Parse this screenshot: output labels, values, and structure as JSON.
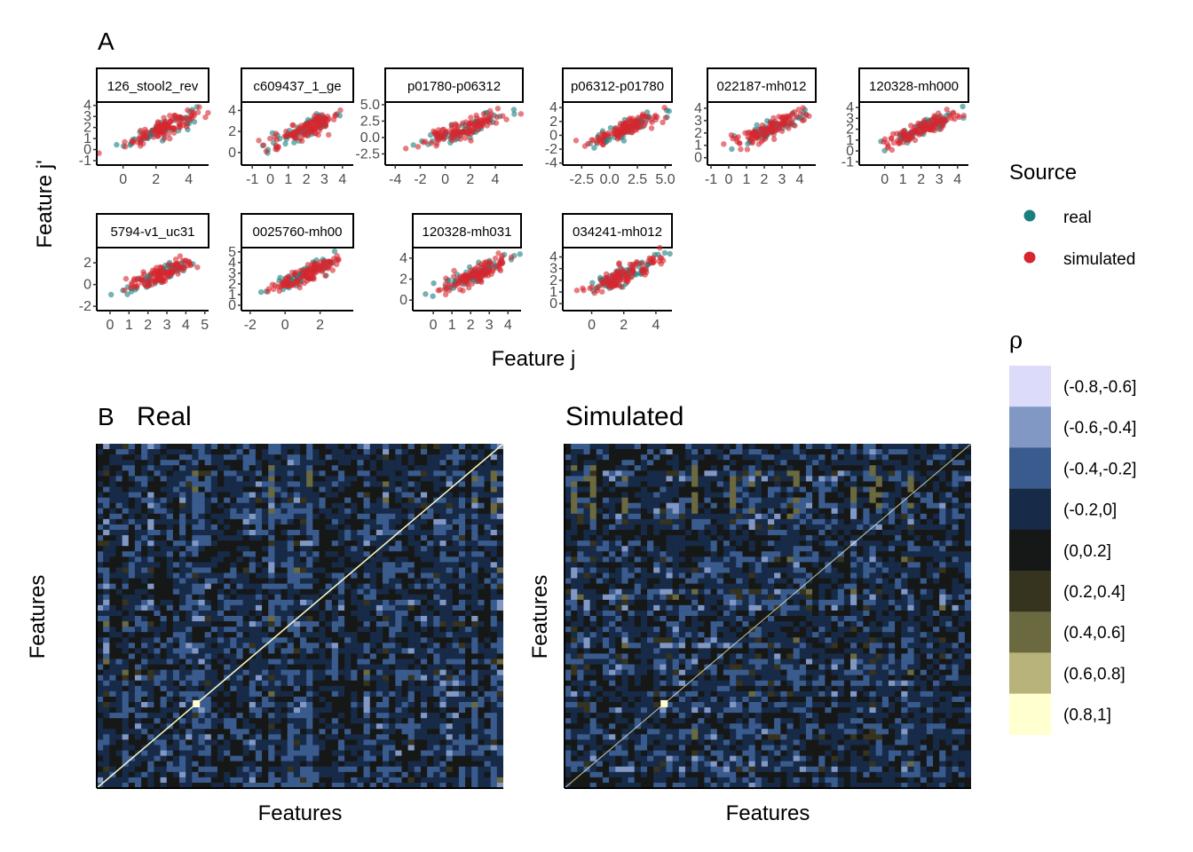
{
  "panel_a": {
    "tag": "A",
    "x_axis_label": "Feature j",
    "y_axis_label": "Feature j'"
  },
  "panel_b": {
    "tag": "B",
    "x_axis_label": "Features",
    "y_axis_label": "Features"
  },
  "legend_source": {
    "title": "Source",
    "items": [
      {
        "label": "real",
        "color": "#1a7f7f"
      },
      {
        "label": "simulated",
        "color": "#d7262f"
      }
    ]
  },
  "legend_rho": {
    "title": "ρ",
    "items": [
      {
        "label": "(-0.8,-0.6]",
        "color": "#dcdcfa"
      },
      {
        "label": "(-0.6,-0.4]",
        "color": "#8298c4"
      },
      {
        "label": "(-0.4,-0.2]",
        "color": "#3a5b8d"
      },
      {
        "label": "(-0.2,0]",
        "color": "#172a47"
      },
      {
        "label": "(0,0.2]",
        "color": "#161818"
      },
      {
        "label": "(0.2,0.4]",
        "color": "#36331e"
      },
      {
        "label": "(0.4,0.6]",
        "color": "#6b6940"
      },
      {
        "label": "(0.6,0.8]",
        "color": "#b7b37a"
      },
      {
        "label": "(0.8,1]",
        "color": "#ffffcf"
      }
    ]
  },
  "chart_data": [
    {
      "type": "scatter",
      "facets": [
        {
          "strip": "126_stool2_rev",
          "xticks": [
            "0",
            "2",
            "4"
          ],
          "yticks": [
            "-1",
            "0",
            "1",
            "2",
            "3",
            "4"
          ],
          "xlim": [
            -1.6,
            5.2
          ],
          "ylim": [
            -1.4,
            4.3
          ]
        },
        {
          "strip": "c609437_1_ge",
          "xticks": [
            "-1",
            "0",
            "1",
            "2",
            "3",
            "4"
          ],
          "yticks": [
            "0",
            "2",
            "4"
          ],
          "xlim": [
            -1.6,
            4.6
          ],
          "ylim": [
            -1.2,
            4.8
          ]
        },
        {
          "strip": "p01780-p06312",
          "xticks": [
            "-4",
            "-2",
            "0",
            "2",
            "4"
          ],
          "yticks": [
            "-2.5",
            "0.0",
            "2.5",
            "5.0"
          ],
          "xlim": [
            -4.8,
            6.2
          ],
          "ylim": [
            -4.2,
            5.4
          ]
        },
        {
          "strip": "p06312-p01780",
          "xticks": [
            "-2.5",
            "0.0",
            "2.5",
            "5.0"
          ],
          "yticks": [
            "-4",
            "-2",
            "0",
            "2",
            "4"
          ],
          "xlim": [
            -4.2,
            5.6
          ],
          "ylim": [
            -4.3,
            4.8
          ]
        },
        {
          "strip": "022187-mh012",
          "xticks": [
            "-1",
            "0",
            "1",
            "2",
            "3",
            "4"
          ],
          "yticks": [
            "0",
            "1",
            "2",
            "3",
            "4"
          ],
          "xlim": [
            -1.2,
            4.9
          ],
          "ylim": [
            -0.6,
            4.5
          ]
        },
        {
          "strip": "120328-mh000",
          "xticks": [
            "0",
            "1",
            "2",
            "3",
            "4"
          ],
          "yticks": [
            "-1",
            "0",
            "1",
            "2",
            "3",
            "4"
          ],
          "xlim": [
            -1.4,
            4.6
          ],
          "ylim": [
            -1.3,
            4.5
          ]
        },
        {
          "strip": "5794-v1_uc31",
          "xticks": [
            "0",
            "1",
            "2",
            "3",
            "4",
            "5"
          ],
          "yticks": [
            "-2",
            "0",
            "2"
          ],
          "xlim": [
            -0.7,
            5.2
          ],
          "ylim": [
            -2.4,
            3.4
          ]
        },
        {
          "strip": "0025760-mh00",
          "xticks": [
            "-2",
            "0",
            "2"
          ],
          "yticks": [
            "0",
            "1",
            "2",
            "3",
            "4",
            "5"
          ],
          "xlim": [
            -2.5,
            3.9
          ],
          "ylim": [
            -0.5,
            5.4
          ]
        },
        {
          "strip": "120328-mh031",
          "xticks": [
            "0",
            "1",
            "2",
            "3",
            "4"
          ],
          "yticks": [
            "0",
            "2",
            "4"
          ],
          "xlim": [
            -1.1,
            4.7
          ],
          "ylim": [
            -1.0,
            5.0
          ]
        },
        {
          "strip": "034241-mh012",
          "xticks": [
            "0",
            "2",
            "4"
          ],
          "yticks": [
            "0",
            "1",
            "2",
            "3",
            "4"
          ],
          "xlim": [
            -1.8,
            5.0
          ],
          "ylim": [
            -0.6,
            4.8
          ]
        }
      ],
      "series": [
        {
          "name": "real",
          "color": "#1a7f7f"
        },
        {
          "name": "simulated",
          "color": "#d7262f"
        }
      ],
      "xlabel": "Feature j",
      "ylabel": "Feature j'"
    },
    {
      "type": "heatmap",
      "title": "Real",
      "xlabel": "Features",
      "ylabel": "Features",
      "value_bins": [
        "(-0.8,-0.6]",
        "(-0.6,-0.4]",
        "(-0.4,-0.2]",
        "(-0.2,0]",
        "(0,0.2]",
        "(0.2,0.4]",
        "(0.4,0.6]",
        "(0.6,0.8]",
        "(0.8,1]"
      ],
      "diagonal": "(0.8,1]"
    },
    {
      "type": "heatmap",
      "title": "Simulated",
      "xlabel": "Features",
      "ylabel": "Features",
      "value_bins": [
        "(-0.8,-0.6]",
        "(-0.6,-0.4]",
        "(-0.4,-0.2]",
        "(-0.2,0]",
        "(0,0.2]",
        "(0.2,0.4]",
        "(0.4,0.6]",
        "(0.6,0.8]",
        "(0.8,1]"
      ],
      "diagonal": "(0.8,1]"
    }
  ]
}
